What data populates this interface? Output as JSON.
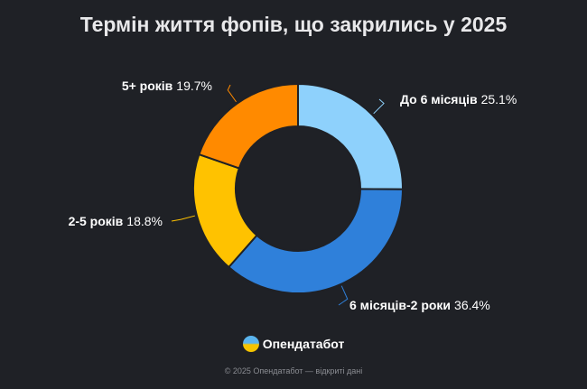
{
  "chart_data": {
    "type": "pie",
    "donut": true,
    "title": "Термін життя фопів, що закрились у 2025",
    "categories": [
      "До 6 місяців",
      "6 місяців-2 роки",
      "2-5 років",
      "5+ років"
    ],
    "values": [
      25.1,
      36.4,
      18.8,
      19.7
    ],
    "labels": [
      "25.1%",
      "36.4%",
      "18.8%",
      "19.7%"
    ],
    "colors": [
      "#8ed1fc",
      "#2f80da",
      "#ffc200",
      "#ff8a00"
    ],
    "start": "top",
    "direction": "clockwise"
  },
  "brand": {
    "name": "Опендатабот"
  },
  "footer": "© 2025 Опендатабот — відкриті дані"
}
